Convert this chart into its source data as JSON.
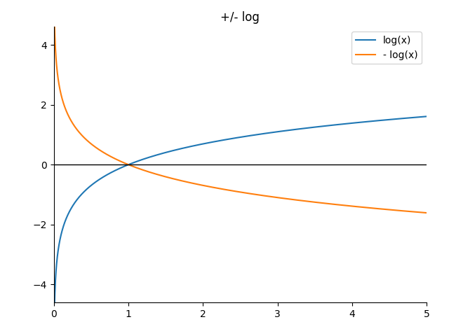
{
  "title": "+/- log",
  "legend_log": "log(x)",
  "legend_neglog": "- log(x)",
  "color_log": "#1f77b4",
  "color_neglog": "#ff7f0e",
  "xmin": 0.001,
  "xmax": 5.0,
  "xlim": [
    0,
    5
  ],
  "ylim": [
    -4.6,
    4.6
  ],
  "hline_y": 0,
  "hline_color": "black",
  "hline_lw": 1.0,
  "figsize": [
    6.4,
    4.8
  ],
  "dpi": 100
}
